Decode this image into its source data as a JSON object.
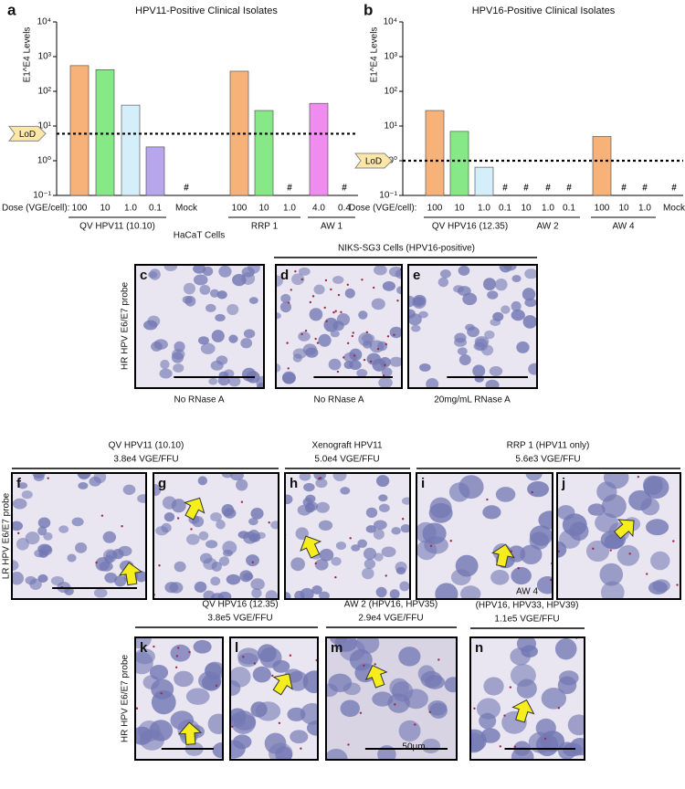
{
  "chart_data": [
    {
      "type": "bar",
      "panel_label": "a",
      "title": "HPV11-Positive Clinical Isolates",
      "y_label": "E1^E4 Levels",
      "log_scale": true,
      "ylim": [
        0.1,
        10000
      ],
      "yticks": [
        {
          "value": 0.1,
          "label": "10⁻¹"
        },
        {
          "value": 1,
          "label": "10⁰"
        },
        {
          "value": 10,
          "label": "10¹"
        },
        {
          "value": 100,
          "label": "10²"
        },
        {
          "value": 1000,
          "label": "10³"
        },
        {
          "value": 10000,
          "label": "10⁴"
        }
      ],
      "dose_label": "Dose (VGE/cell):",
      "categories": [
        "100",
        "10",
        "1.0",
        "0.1",
        "Mock",
        "100",
        "10",
        "1.0",
        "4.0",
        "0.4"
      ],
      "category_groups": [
        "QV HPV11 (10.10)",
        "QV HPV11 (10.10)",
        "QV HPV11 (10.10)",
        "QV HPV11 (10.10)",
        null,
        "RRP 1",
        "RRP 1",
        "RRP 1",
        "AW 1",
        "AW 1"
      ],
      "values": [
        550,
        420,
        40,
        2.5,
        null,
        380,
        28,
        null,
        45,
        null
      ],
      "colors": [
        "#f7b27a",
        "#86e886",
        "#d4eefa",
        "#b7a6ec",
        "#999999",
        "#f7b27a",
        "#86e886",
        "#d4eefa",
        "#f08cf0",
        "#999999"
      ],
      "lod": 6,
      "lod_label": "LoD",
      "below_lod_label": "#"
    },
    {
      "type": "bar",
      "panel_label": "b",
      "title": "HPV16-Positive Clinical Isolates",
      "y_label": "E1^E4 Levels",
      "log_scale": true,
      "ylim": [
        0.1,
        10000
      ],
      "yticks": [
        {
          "value": 0.1,
          "label": "10⁻¹"
        },
        {
          "value": 1,
          "label": "10⁰"
        },
        {
          "value": 10,
          "label": "10¹"
        },
        {
          "value": 100,
          "label": "10²"
        },
        {
          "value": 1000,
          "label": "10³"
        },
        {
          "value": 10000,
          "label": "10⁴"
        }
      ],
      "dose_label": "Dose (VGE/cell):",
      "categories": [
        "100",
        "10",
        "1.0",
        "0.1",
        "10",
        "1.0",
        "0.1",
        "100",
        "10",
        "1.0",
        "Mock"
      ],
      "category_groups": [
        "QV HPV16 (12.35)",
        "QV HPV16 (12.35)",
        "QV HPV16 (12.35)",
        "QV HPV16 (12.35)",
        "AW 2",
        "AW 2",
        "AW 2",
        "AW 4",
        "AW 4",
        "AW 4",
        null
      ],
      "values": [
        28,
        7,
        0.65,
        null,
        null,
        null,
        null,
        5,
        null,
        null,
        null
      ],
      "colors": [
        "#f7b27a",
        "#86e886",
        "#d4eefa",
        "#b7a6ec",
        "#999999",
        "#999999",
        "#999999",
        "#f7b27a",
        "#999999",
        "#999999",
        "#999999"
      ],
      "lod": 1,
      "lod_label": "LoD",
      "below_lod_label": "#"
    }
  ],
  "figure": {
    "panels": [
      "c",
      "d",
      "e",
      "f",
      "g",
      "h",
      "i",
      "j",
      "k",
      "l",
      "m",
      "n"
    ],
    "headers": [
      {
        "lines": [
          "HaCaT Cells"
        ]
      },
      {
        "lines": [
          "NIKS-SG3 Cells (HPV16-positive)"
        ]
      },
      {
        "lines": [
          "QV  HPV11 (10.10)",
          "3.8e4 VGE/FFU"
        ]
      },
      {
        "lines": [
          "Xenograft HPV11",
          "5.0e4 VGE/FFU"
        ]
      },
      {
        "lines": [
          "RRP 1 (HPV11 only)",
          "5.6e3 VGE/FFU"
        ]
      },
      {
        "lines": [
          "QV  HPV16 (12.35)",
          "3.8e5 VGE/FFU"
        ]
      },
      {
        "lines": [
          "AW 2 (HPV16, HPV35)",
          "2.9e4 VGE/FFU"
        ]
      },
      {
        "lines": [
          "AW 4",
          "(HPV16, HPV33, HPV39)",
          "1.1e5 VGE/FFU"
        ]
      }
    ],
    "captions": [
      "No RNase A",
      "No RNase A",
      "20mg/mL RNase A"
    ],
    "probe_labels": [
      "HR HPV E6/E7 probe",
      "LR HPV E6/E7 probe",
      "HR HPV E6/E7 probe"
    ],
    "scale_label": "50μm"
  }
}
